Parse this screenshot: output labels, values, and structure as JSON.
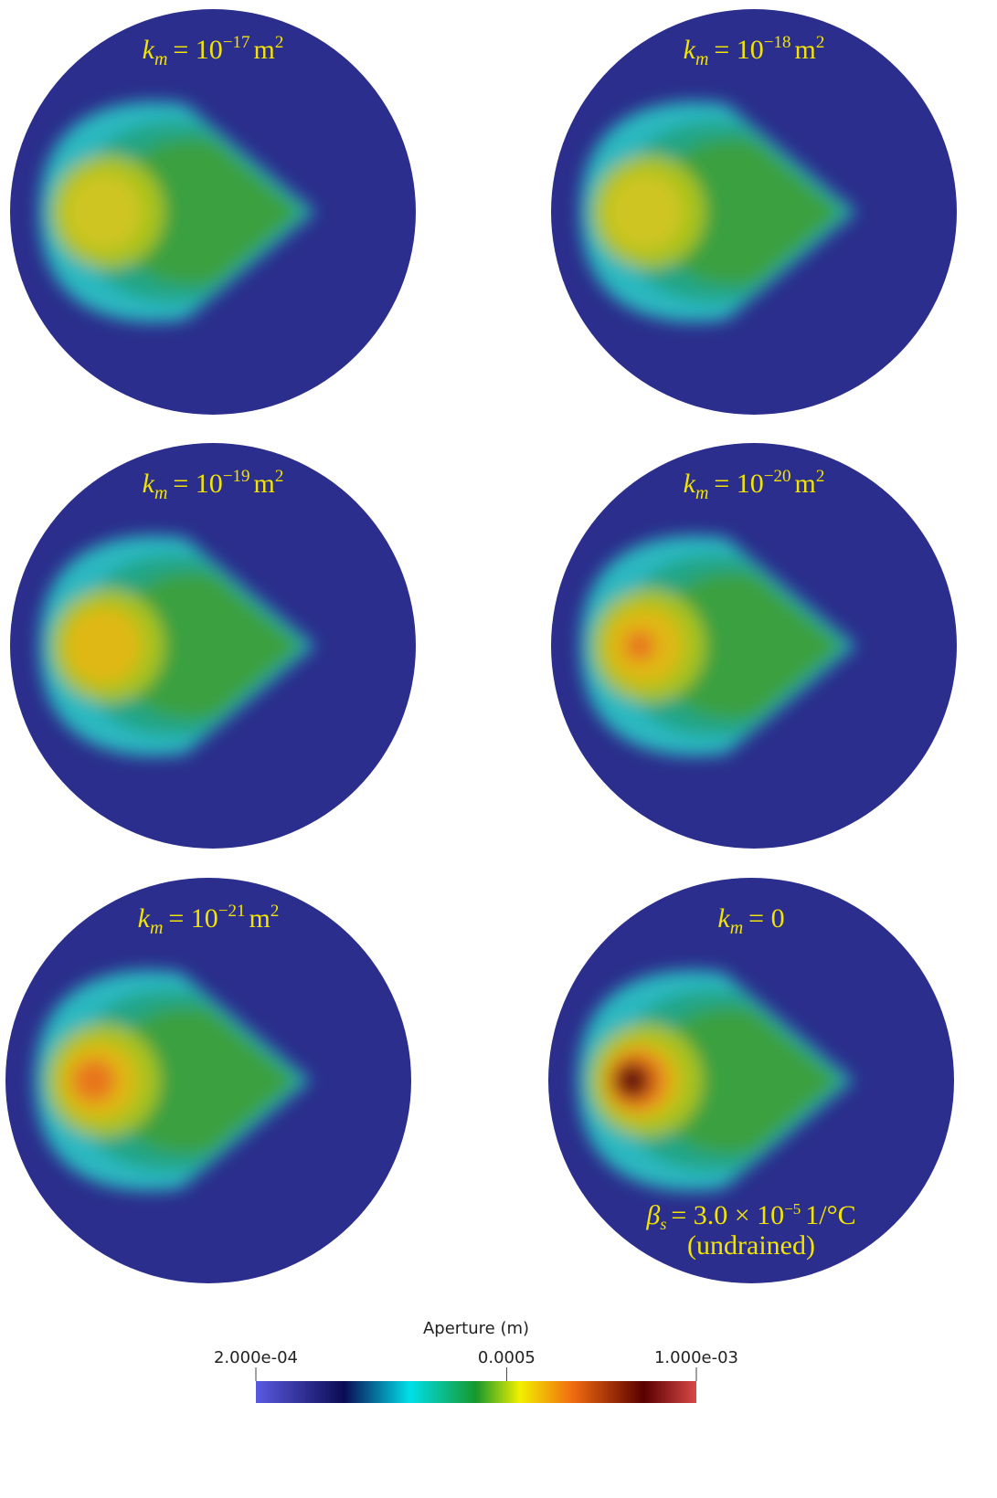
{
  "panels": [
    {
      "label": {
        "symbol": "k",
        "subscript": "m",
        "relation": "= 10",
        "exponent": "−17",
        "unit": "m",
        "unit_exponent": "2"
      }
    },
    {
      "label": {
        "symbol": "k",
        "subscript": "m",
        "relation": "= 10",
        "exponent": "−18",
        "unit": "m",
        "unit_exponent": "2"
      }
    },
    {
      "label": {
        "symbol": "k",
        "subscript": "m",
        "relation": "= 10",
        "exponent": "−19",
        "unit": "m",
        "unit_exponent": "2"
      }
    },
    {
      "label": {
        "symbol": "k",
        "subscript": "m",
        "relation": "= 10",
        "exponent": "−20",
        "unit": "m",
        "unit_exponent": "2"
      }
    },
    {
      "label": {
        "symbol": "k",
        "subscript": "m",
        "relation": "= 10",
        "exponent": "−21",
        "unit": "m",
        "unit_exponent": "2"
      }
    },
    {
      "label": {
        "symbol": "k",
        "subscript": "m",
        "relation": "= 0"
      },
      "note": {
        "symbol": "β",
        "subscript": "s",
        "relation": "= 3.0 × 10",
        "exponent": "−5",
        "unit": "1/°C",
        "line2": "(undrained)"
      }
    }
  ],
  "colorbar": {
    "title": "Aperture (m)",
    "range": [
      0.0002,
      0.001
    ],
    "log": true,
    "ticks": [
      {
        "value": 0.0002,
        "label": "2.000e-04"
      },
      {
        "value": 0.0005,
        "label": "0.0005"
      },
      {
        "value": 0.001,
        "label": "1.000e-03"
      }
    ]
  }
}
